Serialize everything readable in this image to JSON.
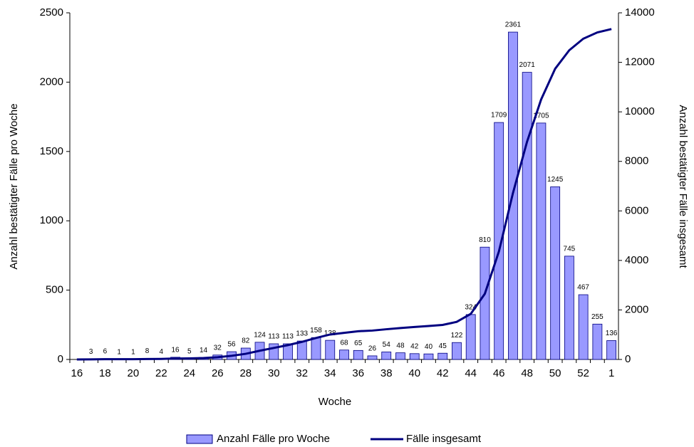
{
  "chart_data": {
    "type": "bar-line",
    "categories": [
      "16",
      null,
      "18",
      null,
      "20",
      null,
      "22",
      null,
      "24",
      null,
      "26",
      null,
      "28",
      null,
      "30",
      null,
      "32",
      null,
      "34",
      null,
      "36",
      null,
      "38",
      null,
      "40",
      null,
      "42",
      null,
      "44",
      null,
      "46",
      null,
      "48",
      null,
      "50",
      null,
      "52",
      null,
      "1"
    ],
    "series": [
      {
        "name": "Anzahl Fälle pro Woche",
        "color": "#9999ff",
        "values": [
          null,
          3,
          6,
          1,
          1,
          8,
          4,
          16,
          5,
          14,
          32,
          56,
          82,
          124,
          113,
          113,
          133,
          158,
          138,
          68,
          65,
          26,
          54,
          48,
          42,
          40,
          45,
          122,
          324,
          810,
          1709,
          2361,
          2071,
          1705,
          1245,
          745,
          467,
          255,
          136
        ]
      },
      {
        "name": "Fälle insgesamt",
        "color": "#000080",
        "axis": "y2",
        "values": [
          0,
          3,
          9,
          10,
          11,
          19,
          23,
          39,
          44,
          58,
          90,
          146,
          228,
          352,
          465,
          578,
          711,
          869,
          1007,
          1075,
          1140,
          1166,
          1220,
          1268,
          1310,
          1350,
          1395,
          1517,
          1841,
          2651,
          4360,
          6721,
          8792,
          10497,
          11742,
          12487,
          12954,
          13209,
          13345
        ]
      }
    ],
    "xlabel": "Woche",
    "ylabel": "Anzahl bestätigter Fälle pro Woche",
    "y2label": "Anzahl bestätigter Fälle insgesamt",
    "ylim": [
      0,
      2500
    ],
    "yticks": [
      0,
      500,
      1000,
      1500,
      2000,
      2500
    ],
    "y2lim": [
      0,
      14000
    ],
    "y2ticks": [
      0,
      2000,
      4000,
      6000,
      8000,
      10000,
      12000,
      14000
    ],
    "legend": "bottom"
  }
}
